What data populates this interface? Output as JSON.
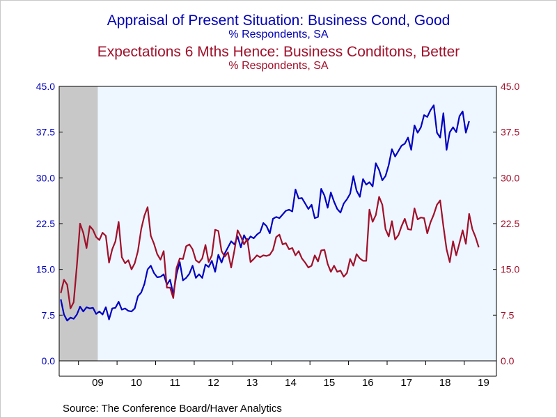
{
  "chart_data": {
    "type": "line",
    "titles": [
      {
        "title": "Appraisal of Present Situation: Business Cond, Good",
        "subtitle": "% Respondents, SA",
        "color": "#0000b4"
      },
      {
        "title": "Expectations 6 Mths Hence: Business Conditons, Better",
        "subtitle": "% Respondents, SA",
        "color": "#a0102a"
      }
    ],
    "source": "Source:  The Conference Board/Haver Analytics",
    "ylim": [
      0,
      45
    ],
    "y_ticks": [
      0.0,
      7.5,
      15.0,
      22.5,
      30.0,
      37.5,
      45.0
    ],
    "y_tick_labels_left": [
      "0.0",
      "7.5",
      "15.0",
      "22.5",
      "30.0",
      "37.5",
      "45.0"
    ],
    "y_tick_labels_right": [
      "0.0",
      "7.5",
      "15.0",
      "22.5",
      "30.0",
      "37.5",
      "45.0"
    ],
    "x_range": [
      "2008-07",
      "2019-10"
    ],
    "x_tick_labels": [
      "09",
      "10",
      "11",
      "12",
      "13",
      "14",
      "15",
      "16",
      "17",
      "18",
      "19"
    ],
    "recession_shading": {
      "start": "2008-07",
      "end": "2009-06",
      "color": "#c8c8c8"
    },
    "plot_background": "#eef6ff",
    "series": [
      {
        "color": "#0000c0",
        "start": "2008-07",
        "values": [
          10.1,
          7.6,
          6.6,
          7.1,
          6.9,
          7.6,
          8.9,
          8.1,
          8.8,
          8.6,
          8.7,
          7.7,
          8.1,
          7.6,
          8.8,
          6.8,
          8.6,
          8.7,
          9.7,
          8.4,
          8.6,
          8.2,
          8.1,
          8.6,
          10.6,
          11.2,
          12.6,
          15.0,
          15.6,
          14.4,
          13.7,
          13.8,
          14.2,
          12.5,
          13.3,
          10.9,
          14.2,
          16.2,
          13.2,
          13.6,
          14.3,
          15.6,
          13.6,
          14.2,
          13.6,
          15.8,
          15.4,
          16.4,
          14.6,
          17.4,
          16.1,
          17.6,
          18.6,
          19.6,
          19.1,
          20.4,
          18.6,
          20.6,
          19.6,
          20.4,
          20.1,
          20.7,
          21.1,
          22.6,
          22.1,
          20.9,
          23.3,
          23.6,
          23.4,
          24.0,
          24.6,
          24.8,
          24.5,
          28.1,
          26.6,
          26.7,
          25.8,
          24.9,
          25.6,
          23.4,
          23.6,
          28.2,
          27.1,
          25.1,
          27.6,
          26.1,
          24.9,
          24.3,
          25.8,
          26.5,
          27.4,
          30.3,
          27.9,
          26.9,
          29.8,
          28.9,
          29.3,
          28.6,
          32.4,
          31.3,
          29.6,
          30.3,
          32.1,
          34.7,
          33.5,
          34.4,
          35.3,
          35.6,
          36.6,
          34.6,
          38.6,
          37.4,
          38.3,
          40.3,
          40.0,
          41.1,
          41.9,
          37.4,
          36.6,
          40.6,
          34.6,
          37.5,
          38.3,
          37.5,
          40.1,
          40.9,
          37.4,
          39.3
        ]
      },
      {
        "color": "#a0102a",
        "start": "2008-07",
        "values": [
          11.1,
          13.3,
          12.5,
          8.6,
          9.6,
          15.6,
          22.5,
          21.0,
          18.5,
          22.1,
          21.5,
          20.3,
          19.8,
          21.0,
          20.5,
          16.1,
          18.3,
          19.6,
          22.8,
          17.0,
          16.0,
          16.5,
          15.0,
          16.0,
          18.0,
          21.6,
          23.8,
          25.2,
          20.5,
          19.2,
          17.5,
          16.6,
          18.0,
          12.0,
          12.0,
          10.3,
          15.2,
          16.8,
          16.7,
          18.8,
          19.1,
          18.3,
          16.5,
          16.1,
          16.8,
          19.0,
          16.2,
          17.3,
          21.5,
          21.3,
          18.0,
          17.1,
          17.8,
          15.3,
          18.1,
          21.4,
          20.4,
          19.1,
          20.0,
          16.2,
          16.7,
          17.3,
          17.0,
          17.3,
          17.2,
          17.4,
          18.2,
          20.3,
          20.7,
          19.1,
          19.3,
          18.3,
          18.5,
          17.3,
          18.0,
          16.8,
          16.1,
          15.3,
          15.6,
          17.3,
          16.3,
          18.1,
          18.2,
          15.9,
          14.6,
          15.6,
          14.6,
          14.8,
          13.8,
          14.4,
          16.7,
          15.6,
          17.5,
          16.8,
          16.4,
          16.4,
          24.8,
          22.8,
          23.9,
          26.9,
          25.6,
          21.6,
          20.4,
          22.9,
          19.9,
          20.6,
          22.1,
          23.3,
          21.6,
          21.5,
          25.0,
          23.2,
          23.5,
          23.4,
          20.9,
          22.7,
          24.0,
          25.6,
          26.3,
          22.1,
          18.3,
          16.2,
          19.6,
          17.3,
          19.3,
          21.4,
          19.2,
          24.1,
          21.6,
          20.3,
          18.6
        ]
      }
    ]
  }
}
